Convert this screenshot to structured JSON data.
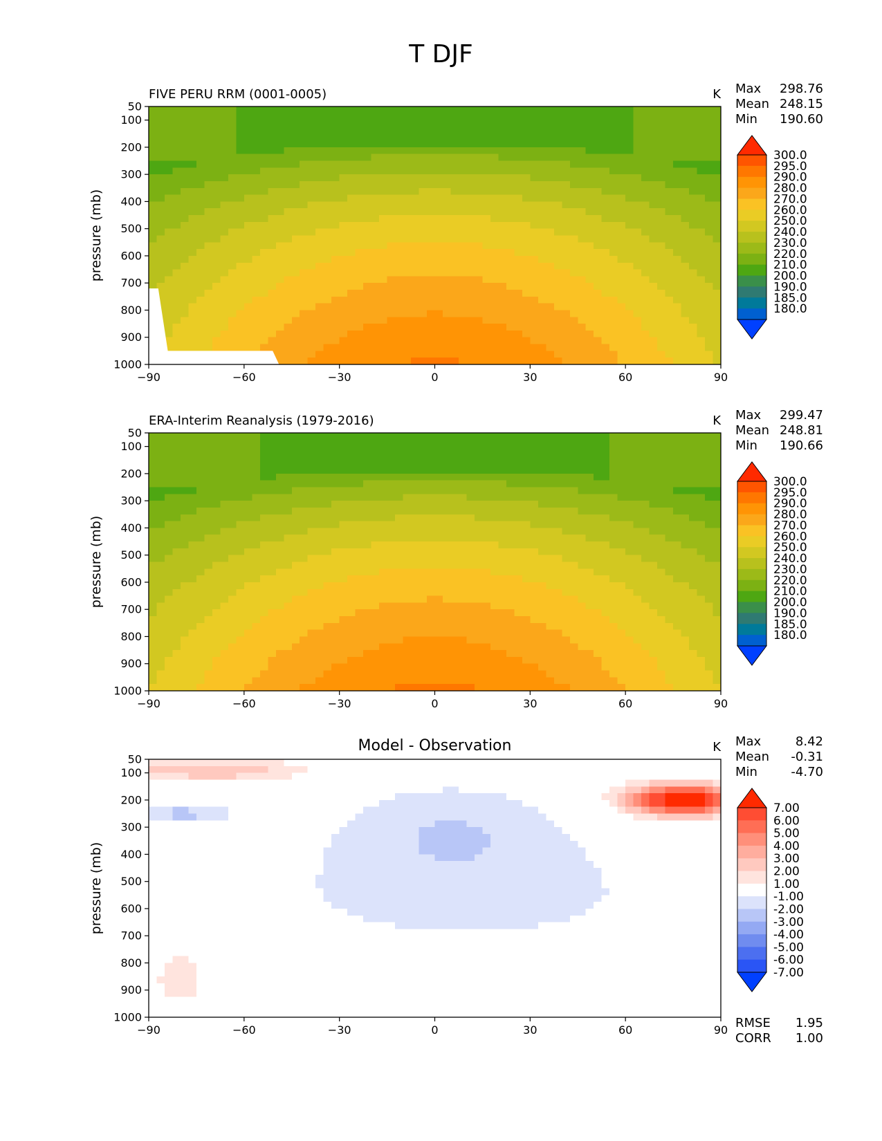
{
  "figure": {
    "suptitle": "T DJF"
  },
  "chart_data": [
    {
      "type": "contour",
      "panel": "model",
      "title_left": "FIVE PERU RRM (0001-0005)",
      "title_center": "",
      "units": "K",
      "stats": [
        {
          "label": "Max",
          "value": "298.76"
        },
        {
          "label": "Mean",
          "value": "248.15"
        },
        {
          "label": "Min",
          "value": "190.60"
        }
      ],
      "bottom_stats": [],
      "ylabel": "pressure (mb)",
      "xlabel": "",
      "xlim": [
        -90,
        90
      ],
      "ylim": [
        1000,
        50
      ],
      "xticks": [
        "−90",
        "−60",
        "−30",
        "0",
        "30",
        "60",
        "90"
      ],
      "yticks": [
        "50",
        "100",
        "200",
        "300",
        "400",
        "500",
        "600",
        "700",
        "800",
        "900",
        "1000"
      ],
      "colorbar": {
        "labels": [
          "300.0",
          "295.0",
          "290.0",
          "280.0",
          "270.0",
          "260.0",
          "250.0",
          "240.0",
          "230.0",
          "220.0",
          "210.0",
          "200.0",
          "190.0",
          "185.0",
          "180.0"
        ],
        "colors": [
          "#ff2a00",
          "#ff5500",
          "#ff7700",
          "#ff9405",
          "#fba71a",
          "#fac224",
          "#eacc25",
          "#d2c821",
          "#b8c11d",
          "#9cba18",
          "#7cb113",
          "#4ea712",
          "#3a8f4a",
          "#2f7a72",
          "#007a9a",
          "#0060d0",
          "#0040ff"
        ]
      }
    },
    {
      "type": "contour",
      "panel": "observation",
      "title_left": "ERA-Interim Reanalysis (1979-2016)",
      "title_center": "",
      "units": "K",
      "stats": [
        {
          "label": "Max",
          "value": "299.47"
        },
        {
          "label": "Mean",
          "value": "248.81"
        },
        {
          "label": "Min",
          "value": "190.66"
        }
      ],
      "bottom_stats": [],
      "ylabel": "pressure (mb)",
      "xlabel": "",
      "xlim": [
        -90,
        90
      ],
      "ylim": [
        1000,
        50
      ],
      "xticks": [
        "−90",
        "−60",
        "−30",
        "0",
        "30",
        "60",
        "90"
      ],
      "yticks": [
        "50",
        "100",
        "200",
        "300",
        "400",
        "500",
        "600",
        "700",
        "800",
        "900",
        "1000"
      ],
      "colorbar": {
        "labels": [
          "300.0",
          "295.0",
          "290.0",
          "280.0",
          "270.0",
          "260.0",
          "250.0",
          "240.0",
          "230.0",
          "220.0",
          "210.0",
          "200.0",
          "190.0",
          "185.0",
          "180.0"
        ],
        "colors": [
          "#ff2a00",
          "#ff5500",
          "#ff7700",
          "#ff9405",
          "#fba71a",
          "#fac224",
          "#eacc25",
          "#d2c821",
          "#b8c11d",
          "#9cba18",
          "#7cb113",
          "#4ea712",
          "#3a8f4a",
          "#2f7a72",
          "#007a9a",
          "#0060d0",
          "#0040ff"
        ]
      }
    },
    {
      "type": "contour",
      "panel": "difference",
      "title_left": "",
      "title_center": "Model - Observation",
      "units": "K",
      "stats": [
        {
          "label": "Max",
          "value": "8.42"
        },
        {
          "label": "Mean",
          "value": "-0.31"
        },
        {
          "label": "Min",
          "value": "-4.70"
        }
      ],
      "bottom_stats": [
        {
          "label": "RMSE",
          "value": "1.95"
        },
        {
          "label": "CORR",
          "value": "1.00"
        }
      ],
      "ylabel": "pressure (mb)",
      "xlabel": "",
      "xlim": [
        -90,
        90
      ],
      "ylim": [
        1000,
        50
      ],
      "xticks": [
        "−90",
        "−60",
        "−30",
        "0",
        "30",
        "60",
        "90"
      ],
      "yticks": [
        "50",
        "100",
        "200",
        "300",
        "400",
        "500",
        "600",
        "700",
        "800",
        "900",
        "1000"
      ],
      "colorbar": {
        "labels": [
          "7.00",
          "6.00",
          "5.00",
          "4.00",
          "3.00",
          "2.00",
          "1.00",
          "-1.00",
          "-2.00",
          "-3.00",
          "-4.00",
          "-5.00",
          "-6.00",
          "-7.00"
        ],
        "colors": [
          "#ff2a00",
          "#ff4d33",
          "#ff6e55",
          "#ff8f7a",
          "#ffad9e",
          "#ffc9bf",
          "#ffe4de",
          "#ffffff",
          "#dce3fb",
          "#b8c6f7",
          "#94a9f3",
          "#708cef",
          "#4c6ff0",
          "#2a55f5",
          "#0040ff"
        ]
      }
    }
  ]
}
